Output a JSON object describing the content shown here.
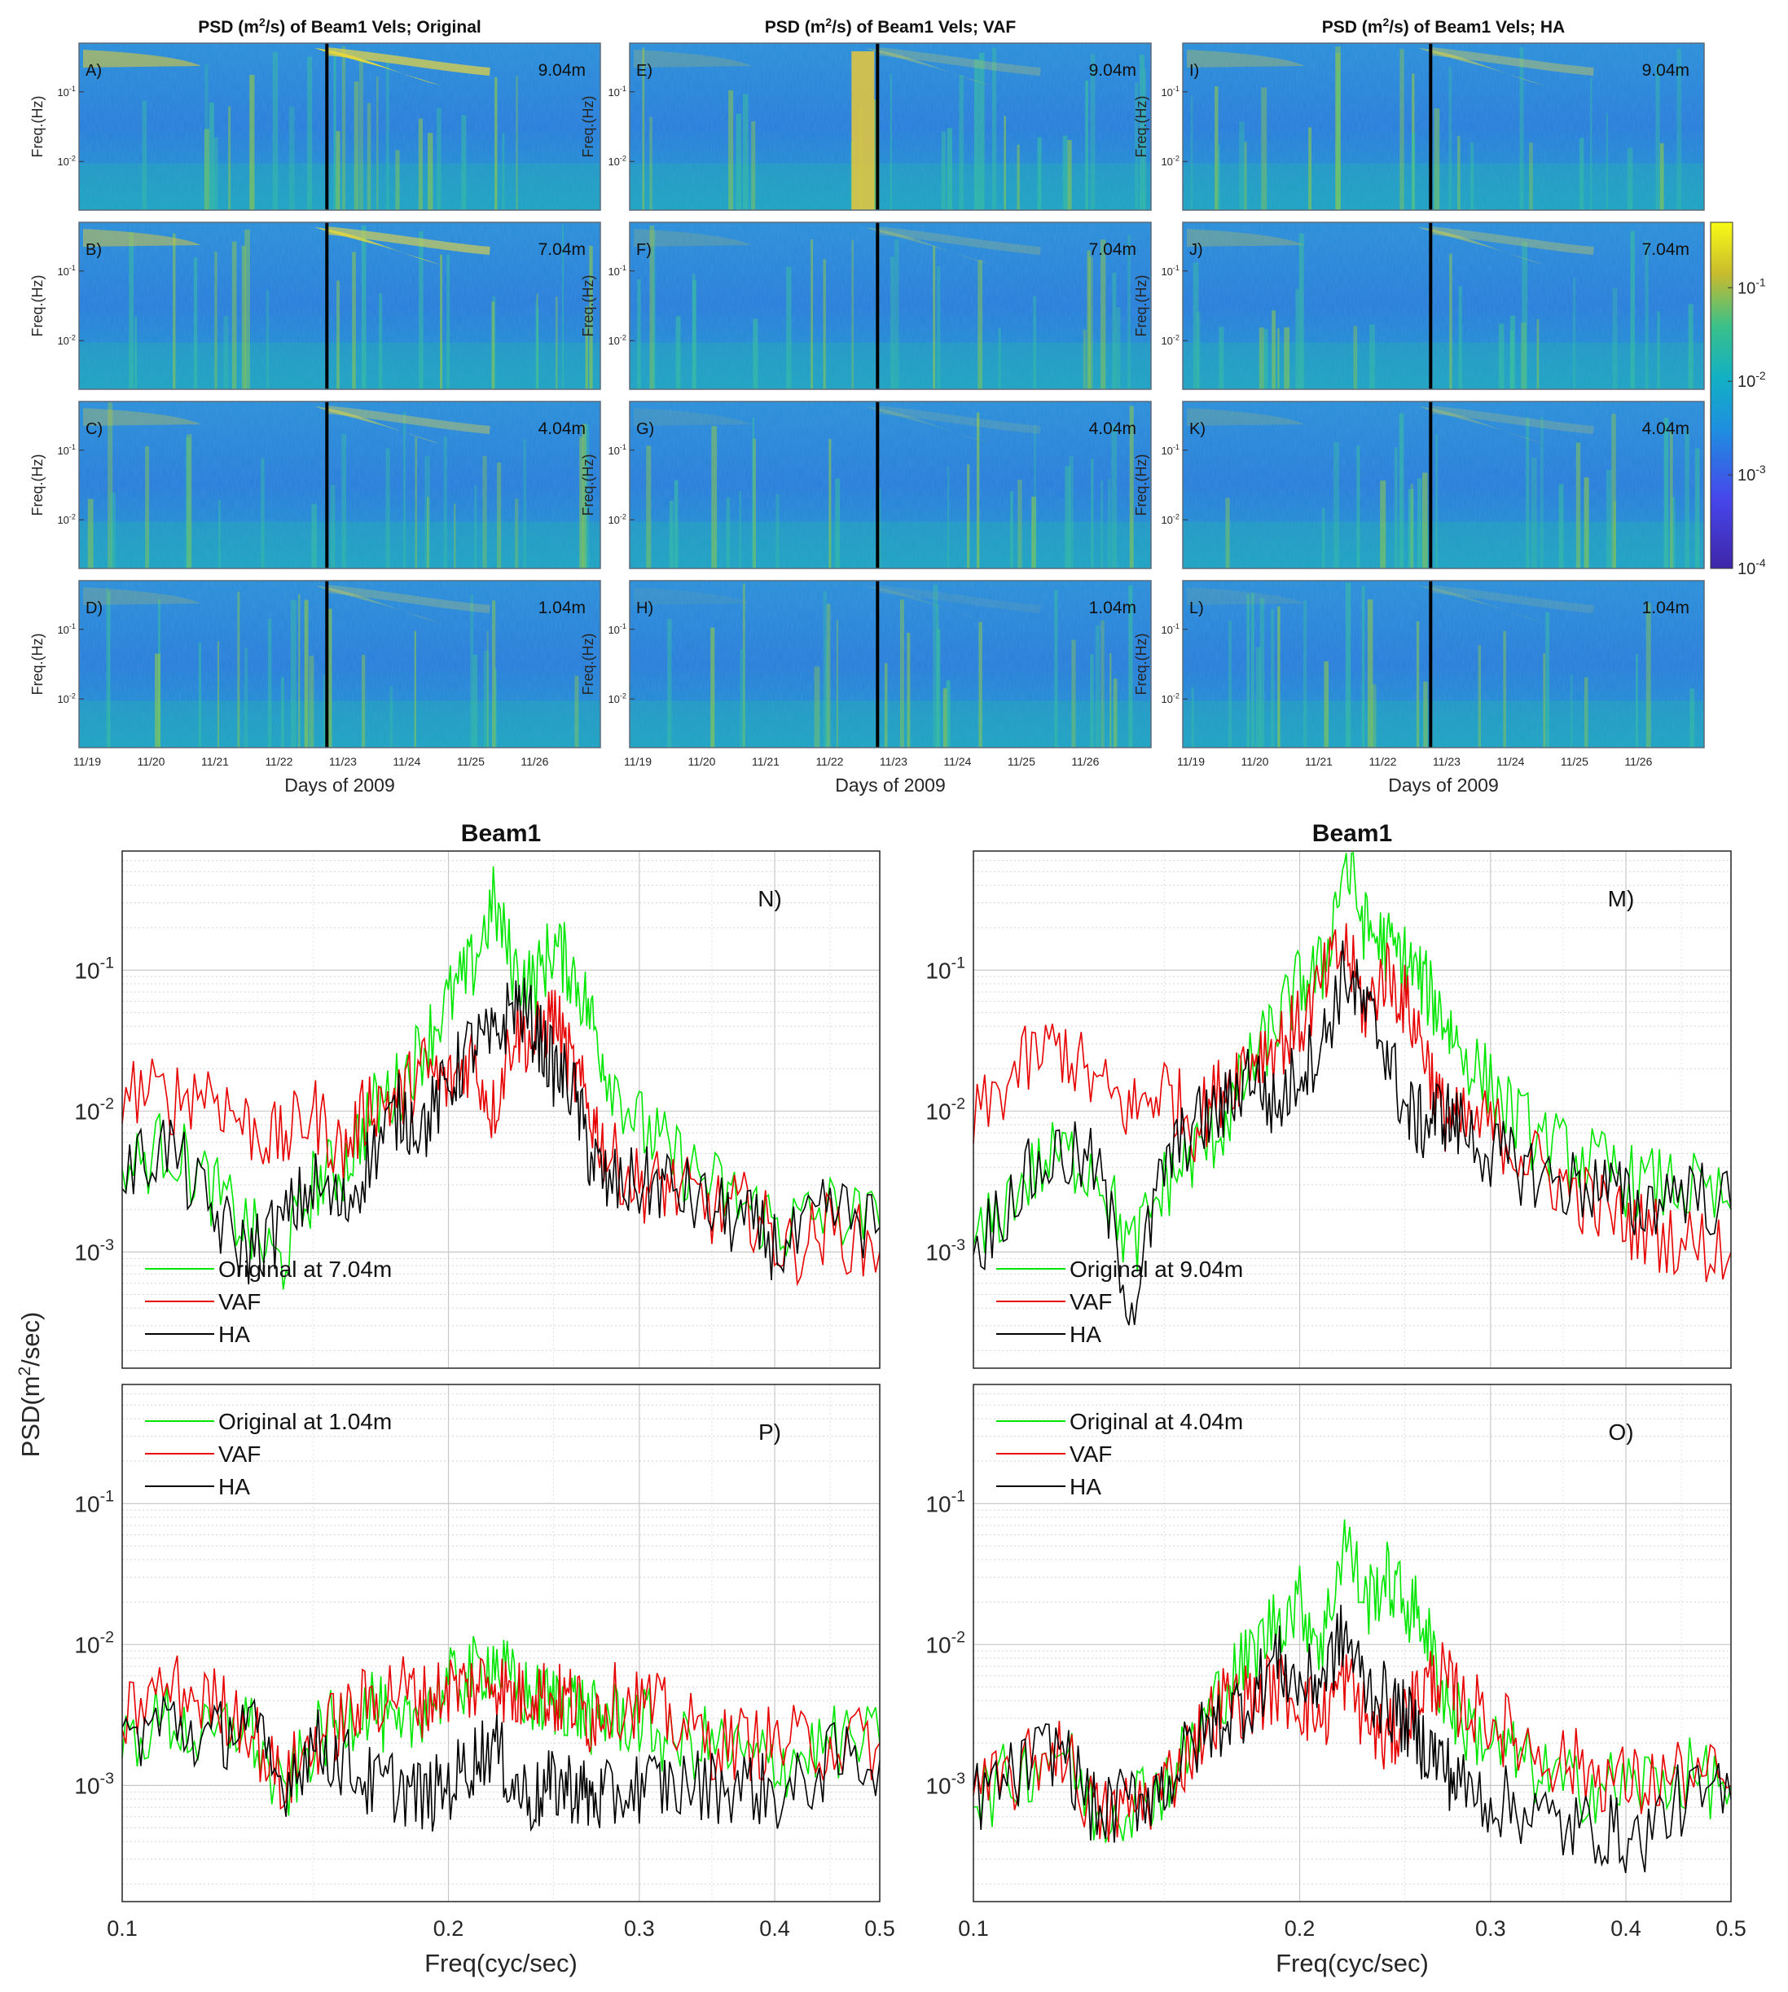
{
  "colors": {
    "original": "#00e600",
    "vaf": "#e60000",
    "ha": "#000000",
    "spec_low": "#3e26a8",
    "spec_mid": "#1fa8d8",
    "spec_high": "#f9fb15",
    "event_line": "#000000",
    "grid": "#c8c8c8",
    "axis": "#262626"
  },
  "spectrograms": {
    "column_titles": [
      {
        "pre": "PSD (m",
        "sup": "2",
        "post": "/s) of Beam1 Vels; Original"
      },
      {
        "pre": "PSD (m",
        "sup": "2",
        "post": "/s) of Beam1 Vels; VAF"
      },
      {
        "pre": "PSD (m",
        "sup": "2",
        "post": "/s) of Beam1 Vels; HA"
      }
    ],
    "panels": [
      [
        "A)",
        "B)",
        "C)",
        "D)"
      ],
      [
        "E)",
        "F)",
        "G)",
        "H)"
      ],
      [
        "I)",
        "J)",
        "K)",
        "L)"
      ]
    ],
    "depths": [
      "9.04m",
      "7.04m",
      "4.04m",
      "1.04m"
    ],
    "ylabel": "Freq.(Hz)",
    "ytick_base": "10",
    "yticks": [
      {
        "exp": "-1",
        "value": 0.1
      },
      {
        "exp": "-2",
        "value": 0.01
      }
    ],
    "xlabel": "Days of 2009",
    "xticks": [
      "11/19",
      "11/20",
      "11/21",
      "11/22",
      "11/23",
      "11/24",
      "11/25",
      "11/26"
    ],
    "event_day": "11/22 (~0.75)",
    "colorbar": {
      "base": "10",
      "ticks": [
        {
          "exp": "-1",
          "value": 0.1
        },
        {
          "exp": "-2",
          "value": 0.01
        },
        {
          "exp": "-3",
          "value": 0.001
        },
        {
          "exp": "-4",
          "value": 0.0001
        }
      ],
      "range": [
        0.0001,
        0.5
      ]
    }
  },
  "chart_data": [
    {
      "type": "line",
      "panel": "N)",
      "title": "Beam1",
      "xlabel": "",
      "ylabel": "",
      "xscale": "log",
      "yscale": "log",
      "xlim": [
        0.1,
        0.5
      ],
      "ylim": [
        0.00015,
        0.7
      ],
      "legend": "upper-left-bottom",
      "x": [
        0.1,
        0.11,
        0.12,
        0.13,
        0.14,
        0.15,
        0.16,
        0.17,
        0.18,
        0.19,
        0.2,
        0.21,
        0.22,
        0.23,
        0.24,
        0.25,
        0.26,
        0.27,
        0.28,
        0.3,
        0.32,
        0.35,
        0.38,
        0.41,
        0.45,
        0.5
      ],
      "series": [
        {
          "name": "Original at 7.04m",
          "values": [
            0.0035,
            0.006,
            0.003,
            0.0015,
            0.0008,
            0.003,
            0.004,
            0.01,
            0.015,
            0.03,
            0.06,
            0.1,
            0.3,
            0.1,
            0.08,
            0.15,
            0.1,
            0.05,
            0.02,
            0.008,
            0.005,
            0.003,
            0.002,
            0.0015,
            0.002,
            0.0015
          ]
        },
        {
          "name": "VAF",
          "values": [
            0.015,
            0.012,
            0.015,
            0.008,
            0.006,
            0.01,
            0.005,
            0.012,
            0.012,
            0.02,
            0.015,
            0.025,
            0.01,
            0.04,
            0.03,
            0.05,
            0.02,
            0.01,
            0.005,
            0.003,
            0.003,
            0.002,
            0.002,
            0.001,
            0.0015,
            0.001
          ]
        },
        {
          "name": "HA",
          "values": [
            0.0035,
            0.006,
            0.002,
            0.001,
            0.0015,
            0.003,
            0.002,
            0.005,
            0.01,
            0.008,
            0.015,
            0.03,
            0.03,
            0.06,
            0.04,
            0.02,
            0.015,
            0.005,
            0.003,
            0.003,
            0.003,
            0.002,
            0.0015,
            0.001,
            0.002,
            0.0015
          ]
        }
      ]
    },
    {
      "type": "line",
      "panel": "M)",
      "title": "Beam1",
      "xlabel": "",
      "ylabel": "",
      "xscale": "log",
      "yscale": "log",
      "xlim": [
        0.1,
        0.5
      ],
      "ylim": [
        0.00015,
        0.7
      ],
      "legend": "upper-left-bottom",
      "x": [
        0.1,
        0.11,
        0.12,
        0.13,
        0.14,
        0.15,
        0.16,
        0.17,
        0.18,
        0.19,
        0.2,
        0.21,
        0.22,
        0.23,
        0.24,
        0.25,
        0.26,
        0.27,
        0.28,
        0.3,
        0.32,
        0.35,
        0.38,
        0.41,
        0.45,
        0.5
      ],
      "series": [
        {
          "name": "Original at 9.04m",
          "values": [
            0.001,
            0.003,
            0.005,
            0.004,
            0.001,
            0.003,
            0.005,
            0.008,
            0.02,
            0.04,
            0.08,
            0.1,
            0.6,
            0.2,
            0.15,
            0.12,
            0.08,
            0.05,
            0.03,
            0.015,
            0.008,
            0.005,
            0.004,
            0.003,
            0.003,
            0.002
          ]
        },
        {
          "name": "VAF",
          "values": [
            0.008,
            0.02,
            0.03,
            0.015,
            0.01,
            0.015,
            0.008,
            0.015,
            0.025,
            0.03,
            0.04,
            0.08,
            0.15,
            0.05,
            0.1,
            0.06,
            0.03,
            0.01,
            0.008,
            0.008,
            0.005,
            0.003,
            0.002,
            0.0015,
            0.0012,
            0.001
          ]
        },
        {
          "name": "HA",
          "values": [
            0.001,
            0.003,
            0.005,
            0.004,
            0.0004,
            0.004,
            0.008,
            0.01,
            0.02,
            0.01,
            0.02,
            0.03,
            0.1,
            0.05,
            0.03,
            0.01,
            0.008,
            0.01,
            0.008,
            0.005,
            0.004,
            0.003,
            0.003,
            0.002,
            0.003,
            0.002
          ]
        }
      ]
    },
    {
      "type": "line",
      "panel": "P)",
      "title": "",
      "xlabel": "Freq(cyc/sec)",
      "ylabel": "PSD(m²/sec)",
      "xscale": "log",
      "yscale": "log",
      "xlim": [
        0.1,
        0.5
      ],
      "ylim": [
        0.00015,
        0.7
      ],
      "legend": "top-left",
      "x": [
        0.1,
        0.11,
        0.12,
        0.13,
        0.14,
        0.15,
        0.16,
        0.17,
        0.18,
        0.19,
        0.2,
        0.21,
        0.22,
        0.23,
        0.24,
        0.25,
        0.26,
        0.27,
        0.28,
        0.3,
        0.32,
        0.35,
        0.38,
        0.41,
        0.45,
        0.5
      ],
      "series": [
        {
          "name": "Original at 1.04m",
          "values": [
            0.002,
            0.003,
            0.002,
            0.003,
            0.0008,
            0.002,
            0.003,
            0.004,
            0.002,
            0.004,
            0.005,
            0.006,
            0.008,
            0.005,
            0.004,
            0.004,
            0.004,
            0.003,
            0.003,
            0.003,
            0.002,
            0.002,
            0.0015,
            0.0015,
            0.002,
            0.002
          ]
        },
        {
          "name": "VAF",
          "values": [
            0.003,
            0.005,
            0.004,
            0.003,
            0.001,
            0.002,
            0.003,
            0.004,
            0.005,
            0.004,
            0.005,
            0.005,
            0.006,
            0.004,
            0.005,
            0.004,
            0.004,
            0.003,
            0.004,
            0.004,
            0.003,
            0.002,
            0.002,
            0.002,
            0.002,
            0.002
          ]
        },
        {
          "name": "HA",
          "values": [
            0.002,
            0.003,
            0.002,
            0.003,
            0.001,
            0.002,
            0.0015,
            0.001,
            0.001,
            0.0008,
            0.001,
            0.0015,
            0.002,
            0.001,
            0.0008,
            0.001,
            0.001,
            0.0008,
            0.0008,
            0.001,
            0.001,
            0.001,
            0.001,
            0.0008,
            0.0015,
            0.0015
          ]
        }
      ]
    },
    {
      "type": "line",
      "panel": "O)",
      "title": "",
      "xlabel": "Freq(cyc/sec)",
      "ylabel": "",
      "xscale": "log",
      "yscale": "log",
      "xlim": [
        0.1,
        0.5
      ],
      "ylim": [
        0.00015,
        0.7
      ],
      "legend": "top-left",
      "x": [
        0.1,
        0.11,
        0.12,
        0.13,
        0.14,
        0.15,
        0.16,
        0.17,
        0.18,
        0.19,
        0.2,
        0.21,
        0.22,
        0.23,
        0.24,
        0.25,
        0.26,
        0.27,
        0.28,
        0.3,
        0.32,
        0.35,
        0.38,
        0.41,
        0.45,
        0.5
      ],
      "series": [
        {
          "name": "Original at 4.04m",
          "values": [
            0.0008,
            0.0012,
            0.002,
            0.0006,
            0.0008,
            0.001,
            0.002,
            0.005,
            0.008,
            0.015,
            0.02,
            0.01,
            0.06,
            0.02,
            0.03,
            0.02,
            0.015,
            0.005,
            0.003,
            0.002,
            0.0015,
            0.001,
            0.001,
            0.001,
            0.0012,
            0.001
          ]
        },
        {
          "name": "VAF",
          "values": [
            0.0008,
            0.0012,
            0.002,
            0.0006,
            0.0007,
            0.001,
            0.002,
            0.004,
            0.004,
            0.005,
            0.004,
            0.003,
            0.006,
            0.003,
            0.002,
            0.003,
            0.005,
            0.006,
            0.004,
            0.003,
            0.002,
            0.0015,
            0.0012,
            0.001,
            0.0012,
            0.001
          ]
        },
        {
          "name": "HA",
          "values": [
            0.0008,
            0.0012,
            0.002,
            0.0006,
            0.0008,
            0.001,
            0.002,
            0.003,
            0.004,
            0.008,
            0.005,
            0.006,
            0.012,
            0.005,
            0.004,
            0.003,
            0.002,
            0.0015,
            0.001,
            0.0008,
            0.0007,
            0.0005,
            0.0005,
            0.0004,
            0.0008,
            0.0008
          ]
        }
      ]
    }
  ],
  "line_axes": {
    "ytick_base": "10",
    "yticks": [
      {
        "exp": "-1",
        "value": 0.1
      },
      {
        "exp": "-2",
        "value": 0.01
      },
      {
        "exp": "-3",
        "value": 0.001
      }
    ],
    "xticks": [
      {
        "label": "0.1",
        "value": 0.1
      },
      {
        "label": "0.2",
        "value": 0.2
      },
      {
        "label": "0.3",
        "value": 0.3
      },
      {
        "label": "0.4",
        "value": 0.4
      },
      {
        "label": "0.5",
        "value": 0.5
      }
    ],
    "ylabel_pre": "PSD(m",
    "ylabel_sup": "2",
    "ylabel_post": "/sec)",
    "xlabel": "Freq(cyc/sec)"
  }
}
